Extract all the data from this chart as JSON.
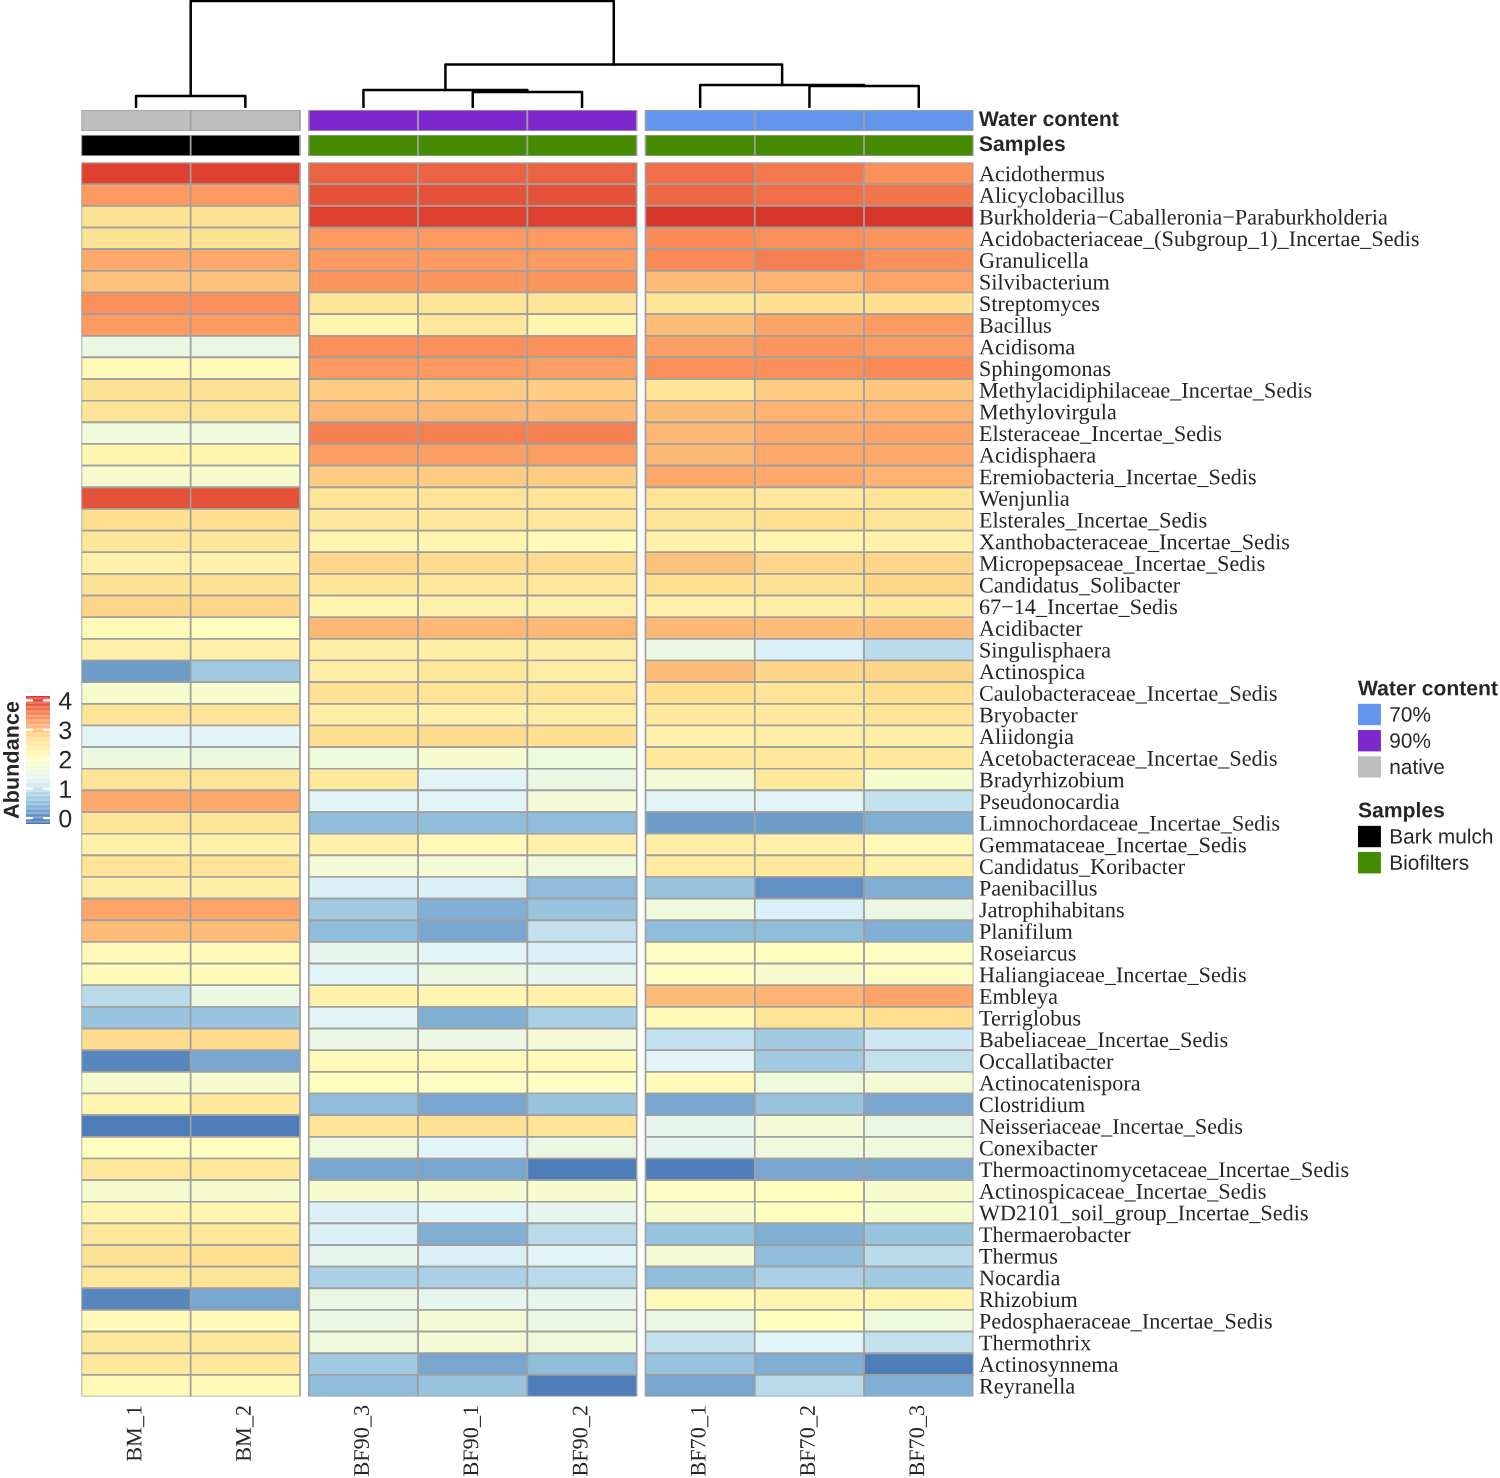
{
  "chart_data": [
    {
      "type": "heatmap",
      "clabel": "Abundance",
      "clim": [
        -0.2,
        4.15
      ],
      "cticks": [
        0,
        1,
        2,
        3,
        4
      ],
      "categories": [
        "BM_1",
        "BM_2",
        "BF90_3",
        "BF90_1",
        "BF90_2",
        "BF70_1",
        "BF70_2",
        "BF70_3"
      ],
      "y_categories": [
        "Acidothermus",
        "Alicyclobacillus",
        "Burkholderia−Caballeronia−Paraburkholderia",
        "Acidobacteriaceae_(Subgroup_1)_Incertae_Sedis",
        "Granulicella",
        "Silvibacterium",
        "Streptomyces",
        "Bacillus",
        "Acidisoma",
        "Sphingomonas",
        "Methylacidiphilaceae_Incertae_Sedis",
        "Methylovirgula",
        "Elsteraceae_Incertae_Sedis",
        "Acidisphaera",
        "Eremiobacteria_Incertae_Sedis",
        "Wenjunlia",
        "Elsterales_Incertae_Sedis",
        "Xanthobacteraceae_Incertae_Sedis",
        "Micropepsaceae_Incertae_Sedis",
        "Candidatus_Solibacter",
        "67−14_Incertae_Sedis",
        "Acidibacter",
        "Singulisphaera",
        "Actinospica",
        "Caulobacteraceae_Incertae_Sedis",
        "Bryobacter",
        "Aliidongia",
        "Acetobacteraceae_Incertae_Sedis",
        "Bradyrhizobium",
        "Pseudonocardia",
        "Limnochordaceae_Incertae_Sedis",
        "Gemmataceae_Incertae_Sedis",
        "Candidatus_Koribacter",
        "Paenibacillus",
        "Jatrophihabitans",
        "Planifilum",
        "Roseiarcus",
        "Haliangiaceae_Incertae_Sedis",
        "Embleya",
        "Terriglobus",
        "Babeliaceae_Incertae_Sedis",
        "Occallatibacter",
        "Actinocatenispora",
        "Clostridium",
        "Neisseriaceae_Incertae_Sedis",
        "Conexibacter",
        "Thermoactinomycetaceae_Incertae_Sedis",
        "Actinospicaceae_Incertae_Sedis",
        "WD2101_soil_group_Incertae_Sedis",
        "Thermaerobacter",
        "Thermus",
        "Nocardia",
        "Rhizobium",
        "Pedosphaeraceae_Incertae_Sedis",
        "Thermothrix",
        "Actinosynnema",
        "Reyranella"
      ],
      "cells": [
        [
          4.0,
          4.0,
          3.75,
          3.75,
          3.75,
          3.65,
          3.55,
          3.4
        ],
        [
          3.3,
          3.3,
          3.85,
          3.85,
          3.85,
          3.7,
          3.65,
          3.6
        ],
        [
          2.65,
          2.65,
          4.0,
          4.0,
          4.0,
          4.1,
          4.1,
          4.1
        ],
        [
          2.65,
          2.65,
          3.3,
          3.3,
          3.3,
          3.45,
          3.4,
          3.35
        ],
        [
          3.15,
          3.15,
          3.3,
          3.3,
          3.3,
          3.45,
          3.5,
          3.4
        ],
        [
          2.95,
          2.95,
          3.35,
          3.35,
          3.35,
          3.0,
          3.1,
          3.2
        ],
        [
          3.4,
          3.4,
          2.6,
          2.6,
          2.6,
          2.6,
          2.7,
          2.7
        ],
        [
          3.3,
          3.3,
          2.2,
          2.5,
          2.2,
          3.0,
          3.2,
          3.3
        ],
        [
          1.5,
          1.5,
          3.4,
          3.4,
          3.4,
          3.25,
          3.35,
          3.3
        ],
        [
          2.1,
          2.1,
          3.3,
          3.3,
          3.25,
          3.4,
          3.4,
          3.45
        ],
        [
          2.65,
          2.65,
          2.85,
          2.85,
          2.85,
          2.6,
          2.85,
          2.9
        ],
        [
          2.6,
          2.6,
          3.05,
          3.05,
          3.05,
          3.0,
          3.1,
          3.1
        ],
        [
          1.6,
          1.6,
          3.5,
          3.5,
          3.5,
          3.05,
          3.15,
          3.2
        ],
        [
          2.2,
          2.2,
          3.25,
          3.25,
          3.25,
          3.05,
          3.15,
          3.15
        ],
        [
          1.8,
          1.8,
          2.85,
          2.85,
          2.85,
          3.15,
          3.15,
          3.1
        ],
        [
          3.85,
          3.85,
          2.6,
          2.6,
          2.6,
          2.6,
          2.5,
          2.6
        ],
        [
          2.7,
          2.7,
          2.5,
          2.5,
          2.5,
          2.6,
          2.7,
          2.6
        ],
        [
          2.55,
          2.55,
          2.2,
          2.2,
          2.1,
          2.3,
          2.2,
          2.3
        ],
        [
          2.3,
          2.3,
          2.8,
          2.75,
          2.75,
          2.95,
          2.8,
          2.8
        ],
        [
          2.65,
          2.65,
          2.6,
          2.5,
          2.5,
          2.7,
          2.65,
          2.8
        ],
        [
          2.8,
          2.8,
          2.2,
          2.3,
          2.3,
          2.3,
          2.4,
          2.5
        ],
        [
          2.1,
          2.0,
          3.05,
          3.05,
          3.05,
          3.05,
          3.0,
          3.0
        ],
        [
          2.3,
          2.3,
          2.4,
          2.4,
          2.4,
          1.5,
          1.2,
          0.9
        ],
        [
          0.2,
          0.7,
          2.4,
          2.5,
          2.4,
          3.0,
          2.8,
          2.8
        ],
        [
          1.8,
          1.8,
          2.65,
          2.6,
          2.6,
          2.7,
          2.6,
          2.7
        ],
        [
          2.6,
          2.6,
          2.4,
          2.3,
          2.4,
          2.5,
          2.5,
          2.6
        ],
        [
          1.3,
          1.3,
          2.7,
          2.75,
          2.7,
          2.3,
          2.4,
          2.4
        ],
        [
          1.55,
          1.55,
          1.6,
          1.8,
          1.6,
          2.5,
          2.5,
          2.5
        ],
        [
          2.6,
          2.6,
          2.5,
          1.3,
          1.5,
          1.7,
          2.5,
          1.8
        ],
        [
          3.15,
          3.15,
          1.3,
          1.3,
          1.7,
          1.3,
          1.3,
          1.0
        ],
        [
          2.6,
          2.6,
          0.5,
          0.5,
          0.5,
          0.2,
          0.2,
          0.4
        ],
        [
          2.3,
          2.3,
          2.3,
          2.1,
          2.3,
          2.4,
          2.3,
          2.1
        ],
        [
          2.6,
          2.6,
          1.7,
          1.7,
          1.6,
          2.45,
          2.5,
          2.3
        ],
        [
          2.4,
          2.4,
          1.2,
          1.2,
          0.5,
          0.6,
          0.1,
          0.4
        ],
        [
          3.2,
          3.2,
          0.7,
          0.4,
          0.6,
          1.6,
          1.2,
          1.5
        ],
        [
          3.0,
          3.0,
          0.5,
          0.3,
          1.0,
          0.5,
          0.5,
          0.4
        ],
        [
          2.1,
          2.1,
          1.4,
          1.3,
          1.2,
          1.9,
          2.0,
          1.9
        ],
        [
          2.1,
          2.1,
          1.3,
          1.5,
          1.4,
          1.9,
          1.8,
          1.9
        ],
        [
          0.9,
          1.5,
          2.3,
          2.2,
          2.3,
          3.0,
          3.1,
          3.2
        ],
        [
          0.6,
          0.6,
          1.3,
          0.4,
          0.8,
          2.1,
          2.6,
          2.7
        ],
        [
          2.75,
          2.75,
          1.5,
          1.5,
          1.7,
          1.0,
          0.7,
          1.1
        ],
        [
          0.0,
          0.3,
          2.1,
          2.1,
          2.1,
          1.3,
          0.7,
          1.0
        ],
        [
          1.8,
          1.8,
          2.0,
          1.9,
          1.9,
          2.1,
          1.6,
          1.7
        ],
        [
          2.2,
          2.5,
          0.5,
          0.3,
          0.6,
          0.3,
          0.6,
          0.3
        ],
        [
          -0.1,
          -0.1,
          2.6,
          2.65,
          2.6,
          1.4,
          1.7,
          1.5
        ],
        [
          2.0,
          2.0,
          1.6,
          1.3,
          1.5,
          1.4,
          1.6,
          1.6
        ],
        [
          2.5,
          2.5,
          0.3,
          0.3,
          -0.1,
          -0.1,
          0.3,
          0.3
        ],
        [
          1.8,
          1.8,
          1.8,
          1.8,
          1.8,
          1.9,
          2.0,
          1.8
        ],
        [
          2.2,
          2.2,
          1.2,
          1.3,
          1.4,
          1.8,
          2.0,
          1.8
        ],
        [
          2.5,
          2.5,
          1.2,
          0.4,
          0.9,
          0.6,
          0.4,
          0.6
        ],
        [
          2.65,
          2.7,
          1.4,
          1.2,
          1.3,
          1.7,
          0.5,
          0.9
        ],
        [
          2.5,
          2.6,
          0.8,
          0.8,
          0.9,
          0.5,
          0.8,
          0.7
        ],
        [
          0.0,
          0.3,
          1.5,
          1.4,
          1.4,
          2.1,
          2.2,
          2.2
        ],
        [
          2.1,
          2.1,
          1.5,
          1.7,
          1.5,
          1.5,
          2.0,
          1.6
        ],
        [
          2.5,
          2.5,
          1.6,
          1.7,
          1.6,
          1.0,
          1.3,
          1.0
        ],
        [
          2.5,
          2.5,
          0.7,
          0.3,
          0.5,
          0.6,
          0.4,
          -0.1
        ],
        [
          2.1,
          2.1,
          0.5,
          0.6,
          -0.1,
          0.3,
          0.9,
          0.4
        ]
      ]
    },
    {
      "type": "other",
      "title": "Water content",
      "legend": "right",
      "colors": [
        "#bebebe",
        "#bebebe",
        "#7f27ce",
        "#7f27ce",
        "#7f27ce",
        "#6495ed",
        "#6495ed",
        "#6495ed"
      ],
      "series": [
        {
          "name": "70%",
          "color": "#6495ed"
        },
        {
          "name": "90%",
          "color": "#7f27ce"
        },
        {
          "name": "native",
          "color": "#bebebe"
        }
      ]
    },
    {
      "type": "other",
      "title": "Samples",
      "legend": "right",
      "colors": [
        "#000000",
        "#000000",
        "#458b00",
        "#458b00",
        "#458b00",
        "#458b00",
        "#458b00",
        "#458b00"
      ],
      "series": [
        {
          "name": "Bark mulch",
          "color": "#000000"
        },
        {
          "name": "Biofilters",
          "color": "#458b00"
        }
      ]
    }
  ]
}
